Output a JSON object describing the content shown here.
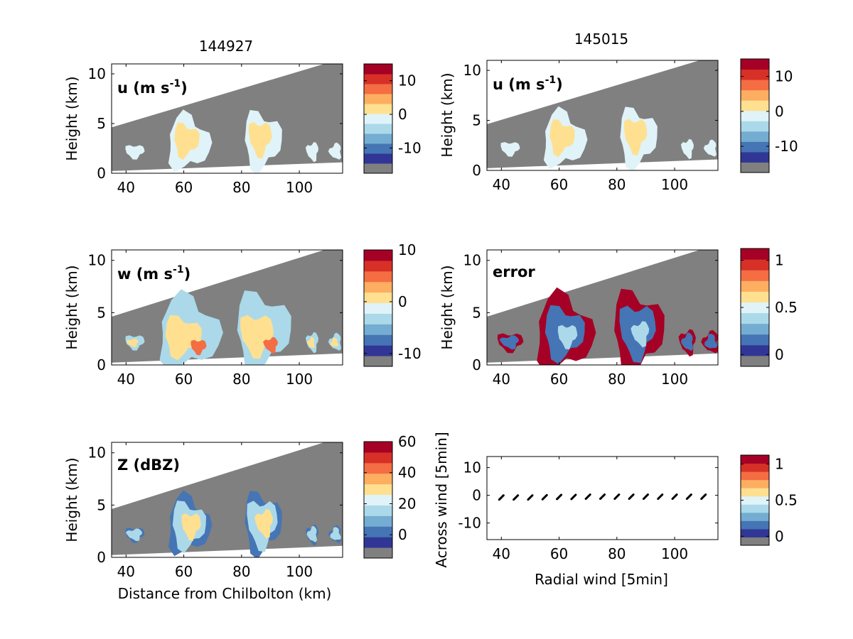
{
  "chart_data": [
    {
      "type": "heatmap",
      "panel": "u-144927",
      "title": "144927",
      "label_prefix": "u (m s",
      "label_sup": "-1",
      "label_suffix": ")",
      "xlabel": "",
      "ylabel": "Height (km)",
      "xlim": [
        35,
        115
      ],
      "ylim": [
        0,
        11
      ],
      "xticks": [
        "40",
        "60",
        "80",
        "100"
      ],
      "yticks": [
        "0",
        "5",
        "10"
      ],
      "colorbar": {
        "ticks": [
          "10",
          "0",
          "-10"
        ],
        "values": [
          10,
          0,
          -10
        ],
        "range": [
          -17.5,
          15
        ]
      }
    },
    {
      "type": "heatmap",
      "panel": "u-145015",
      "title": "145015",
      "label_prefix": "u (m s",
      "label_sup": "-1",
      "label_suffix": ")",
      "xlabel": "",
      "ylabel": "Height (km)",
      "xlim": [
        35,
        115
      ],
      "ylim": [
        0,
        11
      ],
      "xticks": [
        "40",
        "60",
        "80",
        "100"
      ],
      "yticks": [
        "0",
        "5",
        "10"
      ],
      "colorbar": {
        "ticks": [
          "10",
          "0",
          "-10"
        ],
        "values": [
          10,
          0,
          -10
        ],
        "range": [
          -17.5,
          15
        ]
      }
    },
    {
      "type": "heatmap",
      "panel": "w",
      "title": "",
      "label_prefix": "w (m s",
      "label_sup": "-1",
      "label_suffix": ")",
      "xlabel": "",
      "ylabel": "Height (km)",
      "xlim": [
        35,
        115
      ],
      "ylim": [
        0,
        11
      ],
      "xticks": [
        "40",
        "60",
        "80",
        "100"
      ],
      "yticks": [
        "0",
        "5",
        "10"
      ],
      "colorbar": {
        "ticks": [
          "10",
          "0",
          "-10"
        ],
        "values": [
          10,
          0,
          -10
        ],
        "range": [
          -12.5,
          10
        ]
      }
    },
    {
      "type": "heatmap",
      "panel": "error",
      "title": "",
      "label_prefix": "error",
      "label_sup": "",
      "label_suffix": "",
      "xlabel": "",
      "ylabel": "Height (km)",
      "xlim": [
        35,
        115
      ],
      "ylim": [
        0,
        11
      ],
      "xticks": [
        "40",
        "60",
        "80",
        "100"
      ],
      "yticks": [
        "0",
        "5",
        "10"
      ],
      "colorbar": {
        "ticks": [
          "1",
          "0.5",
          "0"
        ],
        "values": [
          1,
          0.5,
          0
        ],
        "range": [
          -0.125,
          1.125
        ]
      }
    },
    {
      "type": "heatmap",
      "panel": "Z",
      "title": "",
      "label_prefix": "Z (dBZ)",
      "label_sup": "",
      "label_suffix": "",
      "xlabel": "Distance from Chilbolton (km)",
      "ylabel": "Height (km)",
      "xlim": [
        35,
        115
      ],
      "ylim": [
        0,
        11
      ],
      "xticks": [
        "40",
        "60",
        "80",
        "100"
      ],
      "yticks": [
        "0",
        "5",
        "10"
      ],
      "colorbar": {
        "ticks": [
          "60",
          "40",
          "20",
          "0"
        ],
        "values": [
          60,
          40,
          20,
          0
        ],
        "range": [
          -15,
          60
        ]
      }
    },
    {
      "type": "scatter",
      "panel": "wind",
      "title": "",
      "label_prefix": "",
      "label_sup": "",
      "label_suffix": "",
      "xlabel": "Radial wind [5min]",
      "ylabel": "Across wind [5min]",
      "xlim": [
        35,
        115
      ],
      "ylim": [
        -16,
        14
      ],
      "xticks": [
        "40",
        "60",
        "80",
        "100"
      ],
      "yticks": [
        "10",
        "0",
        "-10"
      ],
      "points_x": [
        40,
        45,
        50,
        55,
        60,
        65,
        70,
        75,
        80,
        85,
        90,
        95,
        100,
        105,
        110
      ],
      "points_y": [
        -0.8,
        -0.8,
        -0.8,
        -0.7,
        -0.6,
        -0.6,
        -0.5,
        -0.5,
        -0.5,
        -0.5,
        -0.5,
        -0.5,
        -0.5,
        -0.5,
        -0.5
      ],
      "colorbar": {
        "ticks": [
          "1",
          "0.5",
          "0"
        ],
        "values": [
          1,
          0.5,
          0
        ],
        "range": [
          -0.125,
          1.125
        ]
      }
    }
  ],
  "colors": {
    "scale": [
      "#313695",
      "#4575b4",
      "#74add1",
      "#abd9e9",
      "#e0f3f8",
      "#fee090",
      "#fdae61",
      "#f46d43",
      "#d73027",
      "#a50026"
    ],
    "mask": "#808080",
    "masked_ground": "#808080"
  }
}
